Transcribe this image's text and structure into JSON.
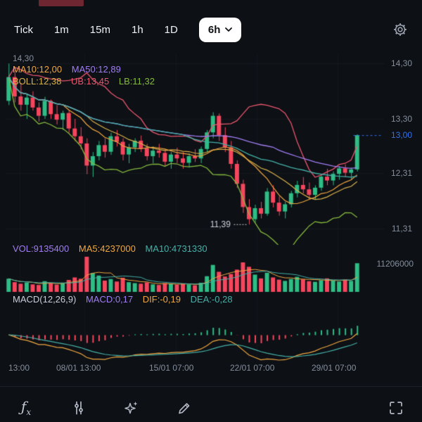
{
  "header": {
    "tabs": [
      {
        "label": "Tick"
      },
      {
        "label": "1m"
      },
      {
        "label": "15m"
      },
      {
        "label": "1h"
      },
      {
        "label": "1D"
      }
    ],
    "selected_tab": {
      "label": "6h"
    }
  },
  "price_chart": {
    "left_axis_top_label": "14,30",
    "indicator_row_1": [
      {
        "label": "MA10:12,00",
        "color": "#f0a740"
      },
      {
        "label": "MA50:12,89",
        "color": "#a07df2"
      }
    ],
    "indicator_row_2": [
      {
        "label": "BOLL:12,38",
        "color": "#d9b24a"
      },
      {
        "label": "UB:13,45",
        "color": "#e8566d"
      },
      {
        "label": "LB:11,32",
        "color": "#85b83d"
      }
    ],
    "right_axis_labels": [
      {
        "value": "14,30",
        "highlight": false
      },
      {
        "value": "13,30",
        "highlight": false
      },
      {
        "value": "13,00",
        "highlight": true
      },
      {
        "value": "12,31",
        "highlight": false
      },
      {
        "value": "11,31",
        "highlight": false
      }
    ],
    "low_annotation": "11,39",
    "current_price_label": "13,00"
  },
  "volume_panel": {
    "indicators": [
      {
        "label": "VOL:9135400",
        "color": "#a07df2"
      },
      {
        "label": "MA5:4237000",
        "color": "#f0a740"
      },
      {
        "label": "MA10:4731330",
        "color": "#45b1a8"
      }
    ],
    "right_axis_label": "11206000"
  },
  "macd_panel": {
    "indicators": [
      {
        "label": "MACD(12,26,9)",
        "color": "#c8cfdb"
      },
      {
        "label": "MACD:0,17",
        "color": "#a07df2"
      },
      {
        "label": "DIF:-0,19",
        "color": "#f0a740"
      },
      {
        "label": "DEA:-0,28",
        "color": "#45b1a8"
      }
    ]
  },
  "x_axis_labels": [
    "13:00",
    "08/01 13:00",
    "15/01 07:00",
    "22/01 07:00",
    "29/01 07:00"
  ],
  "toolbar": {
    "icons": [
      "fx-indicator",
      "depth-sliders",
      "ai-sparkles",
      "draw-pencil",
      "fullscreen"
    ]
  },
  "colors": {
    "background": "#0d1015",
    "up": "#2ebd85",
    "down": "#f6465d",
    "accent_blue": "#3370f0",
    "axis_text": "#848e9c",
    "ma10": "#f0a740",
    "ma50": "#a07df2",
    "ma30": "#45b1a8",
    "boll_mid": "#d9b24a",
    "boll_up": "#e8566d",
    "boll_low": "#85b83d"
  },
  "chart_data": {
    "type": "candlestick",
    "timeframe": "6h",
    "title": "",
    "x_labels": [
      "13:00",
      "08/01 13:00",
      "15/01 07:00",
      "22/01 07:00",
      "29/01 07:00"
    ],
    "y_axis_ticks": [
      14.3,
      13.3,
      13.0,
      12.31,
      11.31
    ],
    "y_range": [
      11.12,
      14.49
    ],
    "current_price": 13.0,
    "low_marker": 11.39,
    "volume_axis_max": 11206000,
    "legend": [
      "MA10",
      "MA50",
      "BOLL",
      "UB",
      "LB",
      "VOL",
      "MACD(12,26,9)"
    ],
    "candles": [
      [
        13.62,
        14.3,
        13.55,
        14.05
      ],
      [
        14.05,
        14.18,
        13.6,
        13.7
      ],
      [
        13.7,
        13.95,
        13.45,
        13.55
      ],
      [
        13.55,
        13.75,
        13.3,
        13.68
      ],
      [
        13.68,
        13.8,
        13.45,
        13.5
      ],
      [
        13.5,
        13.6,
        13.25,
        13.35
      ],
      [
        13.35,
        13.7,
        13.3,
        13.62
      ],
      [
        13.62,
        13.65,
        13.3,
        13.38
      ],
      [
        13.38,
        13.55,
        13.2,
        13.28
      ],
      [
        13.28,
        13.45,
        13.1,
        13.4
      ],
      [
        13.4,
        13.45,
        13.05,
        13.12
      ],
      [
        13.12,
        13.3,
        12.9,
        12.98
      ],
      [
        12.98,
        13.15,
        12.75,
        12.85
      ],
      [
        12.85,
        12.95,
        12.3,
        12.45
      ],
      [
        12.45,
        12.7,
        12.25,
        12.62
      ],
      [
        12.62,
        12.9,
        12.55,
        12.82
      ],
      [
        12.82,
        12.95,
        12.6,
        12.7
      ],
      [
        12.7,
        13.05,
        12.65,
        12.98
      ],
      [
        12.98,
        13.1,
        12.8,
        12.88
      ],
      [
        12.88,
        12.95,
        12.55,
        12.65
      ],
      [
        12.65,
        12.85,
        12.5,
        12.78
      ],
      [
        12.78,
        12.95,
        12.7,
        12.9
      ],
      [
        12.9,
        13.0,
        12.7,
        12.76
      ],
      [
        12.76,
        12.85,
        12.55,
        12.62
      ],
      [
        12.62,
        12.8,
        12.5,
        12.72
      ],
      [
        12.72,
        12.85,
        12.6,
        12.68
      ],
      [
        12.68,
        12.75,
        12.45,
        12.52
      ],
      [
        12.52,
        12.7,
        12.4,
        12.65
      ],
      [
        12.65,
        12.78,
        12.5,
        12.58
      ],
      [
        12.58,
        12.7,
        12.4,
        12.5
      ],
      [
        12.5,
        12.68,
        12.42,
        12.62
      ],
      [
        12.62,
        12.75,
        12.52,
        12.58
      ],
      [
        12.58,
        12.8,
        12.5,
        12.75
      ],
      [
        12.75,
        13.1,
        12.7,
        13.05
      ],
      [
        13.05,
        13.42,
        12.95,
        13.35
      ],
      [
        13.35,
        13.4,
        12.9,
        13.0
      ],
      [
        13.0,
        13.15,
        12.7,
        12.78
      ],
      [
        12.78,
        12.9,
        12.4,
        12.48
      ],
      [
        12.48,
        12.55,
        12.05,
        12.12
      ],
      [
        12.12,
        12.2,
        11.6,
        11.7
      ],
      [
        11.7,
        11.85,
        11.39,
        11.48
      ],
      [
        11.48,
        11.75,
        11.42,
        11.68
      ],
      [
        11.68,
        11.8,
        11.5,
        11.58
      ],
      [
        11.58,
        12.05,
        11.55,
        11.98
      ],
      [
        11.98,
        12.1,
        11.7,
        11.78
      ],
      [
        11.78,
        11.9,
        11.55,
        11.62
      ],
      [
        11.62,
        11.8,
        11.5,
        11.75
      ],
      [
        11.75,
        12.0,
        11.7,
        11.95
      ],
      [
        11.95,
        12.18,
        11.88,
        12.1
      ],
      [
        12.1,
        12.25,
        11.95,
        12.02
      ],
      [
        12.02,
        12.15,
        11.85,
        11.92
      ],
      [
        11.92,
        12.1,
        11.85,
        12.05
      ],
      [
        12.05,
        12.3,
        12.0,
        12.25
      ],
      [
        12.25,
        12.4,
        12.1,
        12.18
      ],
      [
        12.18,
        12.35,
        12.1,
        12.3
      ],
      [
        12.3,
        12.45,
        12.2,
        12.4
      ],
      [
        12.4,
        12.48,
        12.25,
        12.32
      ],
      [
        12.32,
        12.42,
        12.2,
        12.38
      ],
      [
        12.38,
        13.02,
        12.35,
        13.0
      ]
    ],
    "volumes_millions": [
      4.2,
      3.1,
      2.6,
      3.0,
      2.4,
      2.2,
      3.4,
      2.8,
      2.3,
      2.7,
      3.8,
      4.6,
      4.2,
      11.2,
      6.0,
      5.2,
      3.6,
      4.1,
      3.3,
      4.5,
      3.1,
      2.8,
      2.6,
      3.0,
      2.4,
      2.2,
      2.8,
      2.5,
      2.3,
      2.7,
      2.4,
      2.1,
      2.9,
      5.0,
      8.6,
      6.4,
      4.9,
      5.7,
      7.1,
      9.4,
      8.0,
      5.5,
      4.3,
      6.1,
      4.6,
      3.9,
      3.5,
      4.1,
      4.8,
      4.0,
      3.4,
      3.2,
      3.7,
      4.3,
      3.6,
      3.3,
      3.9,
      3.5,
      9.1354
    ]
  }
}
